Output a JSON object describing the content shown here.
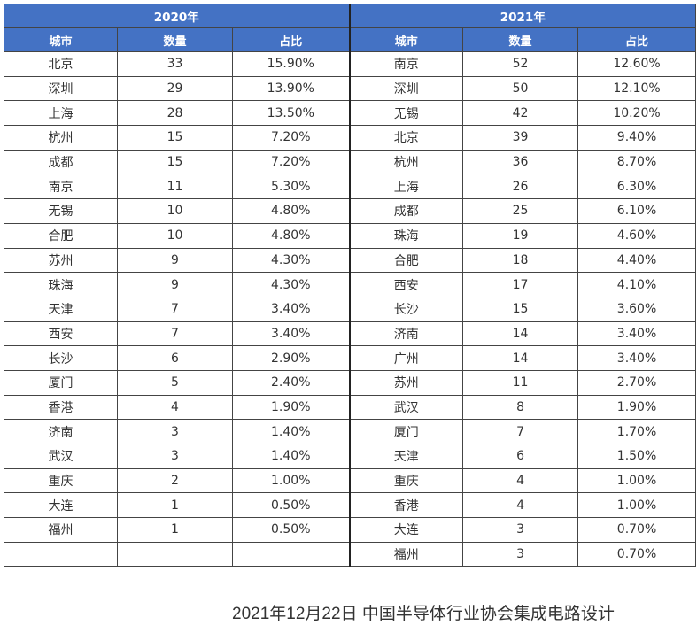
{
  "header": {
    "year_2020": "2020年",
    "year_2021": "2021年",
    "columns": [
      "城市",
      "数量",
      "占比"
    ]
  },
  "rows_2020": [
    [
      "北京",
      "33",
      "15.90%"
    ],
    [
      "深圳",
      "29",
      "13.90%"
    ],
    [
      "上海",
      "28",
      "13.50%"
    ],
    [
      "杭州",
      "15",
      "7.20%"
    ],
    [
      "成都",
      "15",
      "7.20%"
    ],
    [
      "南京",
      "11",
      "5.30%"
    ],
    [
      "无锡",
      "10",
      "4.80%"
    ],
    [
      "合肥",
      "10",
      "4.80%"
    ],
    [
      "苏州",
      "9",
      "4.30%"
    ],
    [
      "珠海",
      "9",
      "4.30%"
    ],
    [
      "天津",
      "7",
      "3.40%"
    ],
    [
      "西安",
      "7",
      "3.40%"
    ],
    [
      "长沙",
      "6",
      "2.90%"
    ],
    [
      "厦门",
      "5",
      "2.40%"
    ],
    [
      "香港",
      "4",
      "1.90%"
    ],
    [
      "济南",
      "3",
      "1.40%"
    ],
    [
      "武汉",
      "3",
      "1.40%"
    ],
    [
      "重庆",
      "2",
      "1.00%"
    ],
    [
      "大连",
      "1",
      "0.50%"
    ],
    [
      "福州",
      "1",
      "0.50%"
    ],
    [
      "",
      "",
      ""
    ]
  ],
  "rows_2021": [
    [
      "南京",
      "52",
      "12.60%"
    ],
    [
      "深圳",
      "50",
      "12.10%"
    ],
    [
      "无锡",
      "42",
      "10.20%"
    ],
    [
      "北京",
      "39",
      "9.40%"
    ],
    [
      "杭州",
      "36",
      "8.70%"
    ],
    [
      "上海",
      "26",
      "6.30%"
    ],
    [
      "成都",
      "25",
      "6.10%"
    ],
    [
      "珠海",
      "19",
      "4.60%"
    ],
    [
      "合肥",
      "18",
      "4.40%"
    ],
    [
      "西安",
      "17",
      "4.10%"
    ],
    [
      "长沙",
      "15",
      "3.60%"
    ],
    [
      "济南",
      "14",
      "3.40%"
    ],
    [
      "广州",
      "14",
      "3.40%"
    ],
    [
      "苏州",
      "11",
      "2.70%"
    ],
    [
      "武汉",
      "8",
      "1.90%"
    ],
    [
      "厦门",
      "7",
      "1.70%"
    ],
    [
      "天津",
      "6",
      "1.50%"
    ],
    [
      "重庆",
      "4",
      "1.00%"
    ],
    [
      "香港",
      "4",
      "1.00%"
    ],
    [
      "大连",
      "3",
      "0.70%"
    ],
    [
      "福州",
      "3",
      "0.70%"
    ]
  ],
  "caption": "2021年12月22日 中国半导体行业协会集成电路设计"
}
